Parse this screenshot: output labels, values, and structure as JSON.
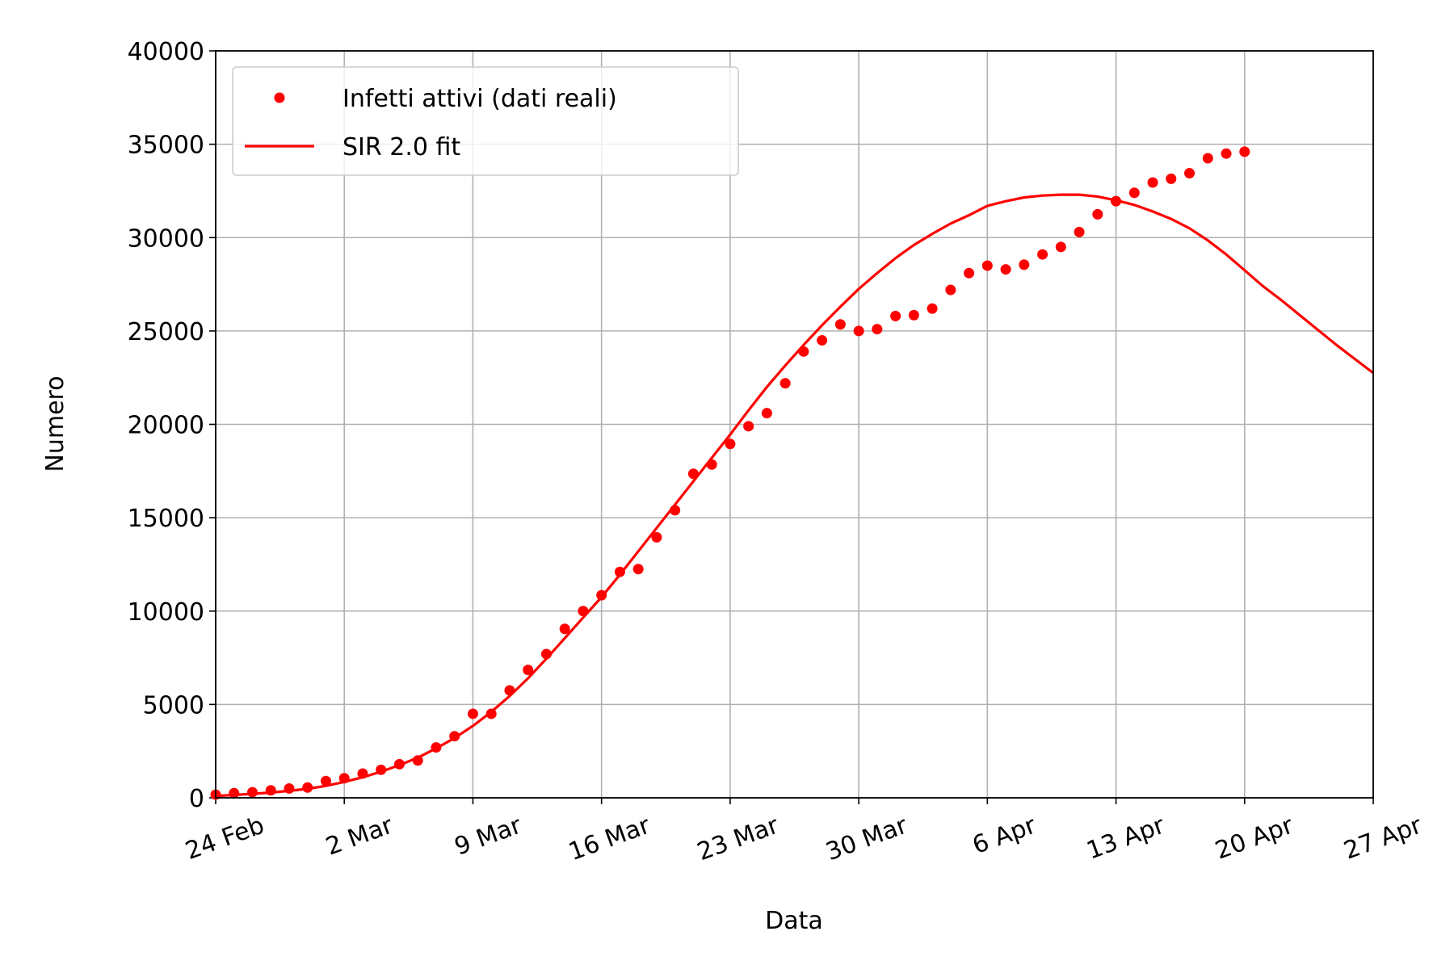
{
  "chart_data": {
    "type": "line",
    "xlabel": "Data",
    "ylabel": "Numero",
    "x": [
      "24 Feb",
      "25 Feb",
      "26 Feb",
      "27 Feb",
      "28 Feb",
      "29 Feb",
      "1 Mar",
      "2 Mar",
      "3 Mar",
      "4 Mar",
      "5 Mar",
      "6 Mar",
      "7 Mar",
      "8 Mar",
      "9 Mar",
      "10 Mar",
      "11 Mar",
      "12 Mar",
      "13 Mar",
      "14 Mar",
      "15 Mar",
      "16 Mar",
      "17 Mar",
      "18 Mar",
      "19 Mar",
      "20 Mar",
      "21 Mar",
      "22 Mar",
      "23 Mar",
      "24 Mar",
      "25 Mar",
      "26 Mar",
      "27 Mar",
      "28 Mar",
      "29 Mar",
      "30 Mar",
      "31 Mar",
      "1 Apr",
      "2 Apr",
      "3 Apr",
      "4 Apr",
      "5 Apr",
      "6 Apr",
      "7 Apr",
      "8 Apr",
      "9 Apr",
      "10 Apr",
      "11 Apr",
      "12 Apr",
      "13 Apr",
      "14 Apr",
      "15 Apr",
      "16 Apr",
      "17 Apr",
      "18 Apr",
      "19 Apr",
      "20 Apr",
      "21 Apr",
      "22 Apr",
      "23 Apr",
      "24 Apr",
      "25 Apr",
      "26 Apr",
      "27 Apr"
    ],
    "series": [
      {
        "name": "Infetti attivi (dati reali)",
        "style": "dots",
        "color": "#ff0000",
        "values": [
          170,
          250,
          300,
          400,
          500,
          550,
          900,
          1050,
          1300,
          1500,
          1800,
          2000,
          2700,
          3300,
          4500,
          4500,
          5750,
          6850,
          7700,
          9050,
          10000,
          10850,
          12100,
          12250,
          13950,
          15400,
          17350,
          17850,
          18950,
          19900,
          20600,
          22200,
          23900,
          24500,
          25350,
          25000,
          25100,
          25800,
          25850,
          26200,
          27200,
          28100,
          28500,
          28300,
          28550,
          29100,
          29500,
          30300,
          31250,
          31950,
          32400,
          32950,
          33150,
          33450,
          34250,
          34500,
          34600,
          null,
          null,
          null,
          null,
          null,
          null,
          null
        ]
      },
      {
        "name": "SIR 2.0 fit",
        "style": "line",
        "color": "#ff0000",
        "values": [
          100,
          150,
          210,
          280,
          370,
          480,
          640,
          850,
          1100,
          1400,
          1750,
          2150,
          2650,
          3200,
          3850,
          4600,
          5450,
          6400,
          7450,
          8550,
          9650,
          10750,
          11950,
          13200,
          14450,
          15700,
          16950,
          18200,
          19450,
          20750,
          22000,
          23150,
          24250,
          25300,
          26300,
          27250,
          28100,
          28900,
          29600,
          30200,
          30750,
          31200,
          31700,
          31950,
          32150,
          32250,
          32300,
          32300,
          32200,
          32000,
          31750,
          31400,
          31000,
          30500,
          29850,
          29100,
          28250,
          27400,
          26650,
          25850,
          25050,
          24250,
          23500,
          22750
        ]
      }
    ],
    "xticks": [
      "24 Feb",
      "2 Mar",
      "9 Mar",
      "16 Mar",
      "23 Mar",
      "30 Mar",
      "6 Apr",
      "13 Apr",
      "20 Apr",
      "27 Apr"
    ],
    "ylim": [
      0,
      40000
    ],
    "yticks": [
      0,
      5000,
      10000,
      15000,
      20000,
      25000,
      30000,
      35000,
      40000
    ],
    "grid": true,
    "legend": "upper left"
  }
}
